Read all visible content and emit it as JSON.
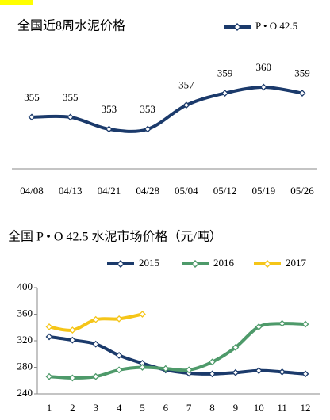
{
  "chart_data": [
    {
      "type": "line",
      "title": "全国近8周水泥价格",
      "categories": [
        "04/08",
        "04/13",
        "04/21",
        "04/28",
        "05/04",
        "05/12",
        "05/19",
        "05/26"
      ],
      "series": [
        {
          "name": "P • O 42.5",
          "color": "#1b3a6b",
          "values": [
            355,
            355,
            353,
            353,
            357,
            359,
            360,
            359
          ]
        }
      ],
      "data_labels": true,
      "legend": "top-right"
    },
    {
      "type": "line",
      "title": "全国 P • O 42.5 水泥市场价格（元/吨）",
      "categories": [
        "1",
        "2",
        "3",
        "4",
        "5",
        "6",
        "7",
        "8",
        "9",
        "10",
        "11",
        "12"
      ],
      "series": [
        {
          "name": "2015",
          "color": "#1b3a6b",
          "values": [
            326,
            321,
            315,
            298,
            286,
            276,
            271,
            270,
            272,
            275,
            273,
            270
          ]
        },
        {
          "name": "2016",
          "color": "#4e9a6a",
          "values": [
            266,
            264,
            266,
            276,
            280,
            278,
            276,
            288,
            310,
            341,
            346,
            345
          ]
        },
        {
          "name": "2017",
          "color": "#f5c518",
          "values": [
            341,
            336,
            352,
            353,
            360,
            null,
            null,
            null,
            null,
            null,
            null,
            null
          ]
        }
      ],
      "ylim": [
        240,
        400
      ],
      "yticks": [
        240,
        280,
        320,
        360,
        400
      ],
      "grid": false,
      "legend": "top"
    }
  ]
}
